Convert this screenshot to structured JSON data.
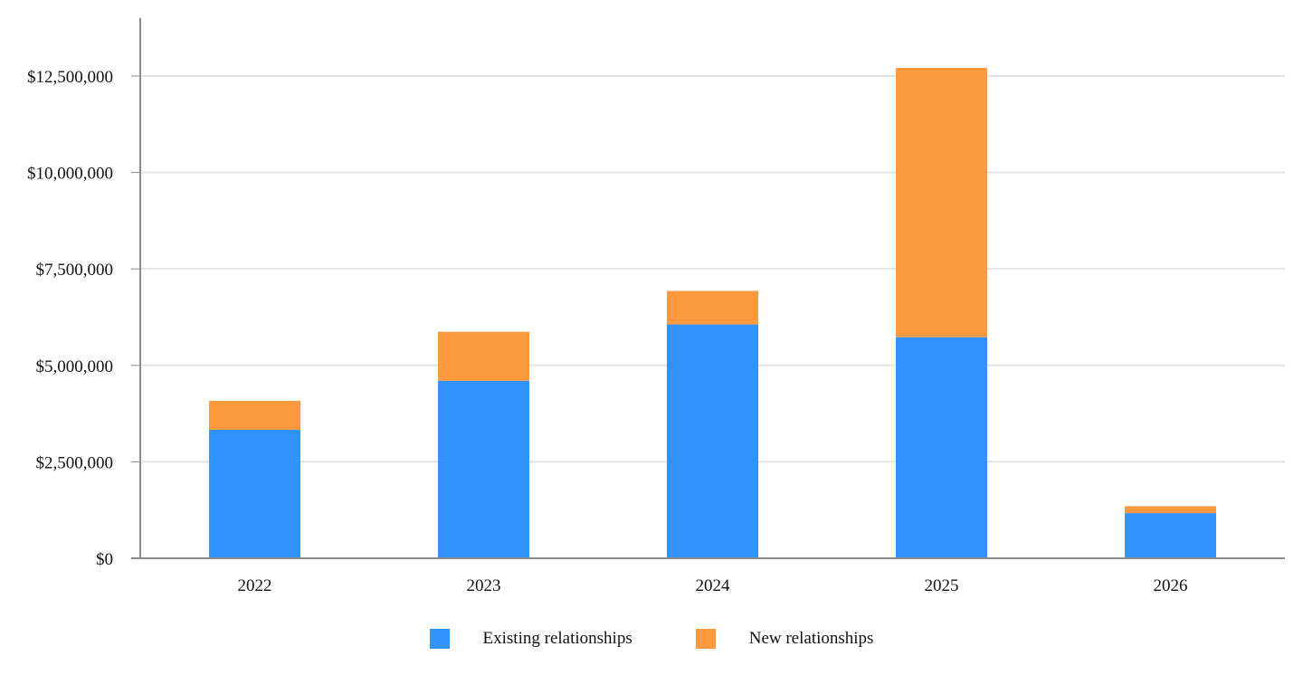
{
  "chart_data": {
    "type": "bar",
    "stacked": true,
    "categories": [
      "2022",
      "2023",
      "2024",
      "2025",
      "2026"
    ],
    "series": [
      {
        "name": "Existing relationships",
        "color": "#3092fc",
        "values": [
          3330000,
          4600000,
          6060000,
          5730000,
          1170000
        ]
      },
      {
        "name": "New relationships",
        "color": "#fd9a3f",
        "values": [
          750000,
          1270000,
          870000,
          6980000,
          180000
        ]
      }
    ],
    "y_ticks": [
      0,
      2500000,
      5000000,
      7500000,
      10000000,
      12500000
    ],
    "y_tick_labels": [
      "$0",
      "$2,500,000",
      "$5,000,000",
      "$7,500,000",
      "$10,000,000",
      "$12,500,000"
    ],
    "ylim": [
      0,
      14000000
    ],
    "grid": true,
    "legend_position": "bottom",
    "title": "",
    "xlabel": "",
    "ylabel": ""
  }
}
